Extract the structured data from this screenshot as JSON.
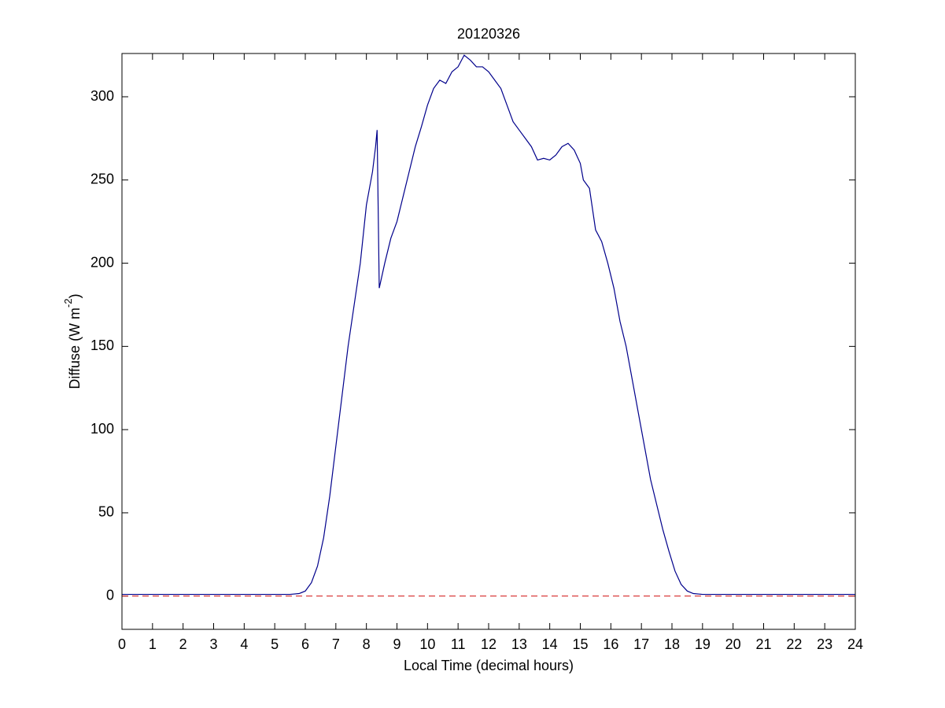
{
  "chart_data": {
    "type": "line",
    "title": "20120326",
    "xlabel": "Local Time (decimal hours)",
    "ylabel": [
      "Diffuse (W m",
      "-2",
      ")"
    ],
    "x": [
      0,
      1,
      2,
      3,
      4,
      5,
      5.5,
      5.8,
      6.0,
      6.2,
      6.4,
      6.6,
      6.8,
      7.0,
      7.2,
      7.4,
      7.6,
      7.8,
      8.0,
      8.2,
      8.3,
      8.35,
      8.38,
      8.42,
      8.6,
      8.8,
      9.0,
      9.2,
      9.4,
      9.6,
      9.8,
      10.0,
      10.2,
      10.4,
      10.6,
      10.8,
      11.0,
      11.2,
      11.4,
      11.6,
      11.8,
      12.0,
      12.2,
      12.4,
      12.6,
      12.8,
      13.0,
      13.2,
      13.4,
      13.6,
      13.8,
      14.0,
      14.2,
      14.4,
      14.6,
      14.8,
      15.0,
      15.1,
      15.3,
      15.5,
      15.7,
      15.9,
      16.1,
      16.3,
      16.5,
      16.7,
      16.9,
      17.1,
      17.3,
      17.5,
      17.7,
      17.9,
      18.1,
      18.3,
      18.5,
      18.7,
      19,
      20,
      21,
      22,
      23,
      24
    ],
    "series": [
      {
        "color": "#00008b",
        "values": [
          1,
          1,
          1,
          1,
          1,
          1,
          1,
          1.5,
          3,
          8,
          18,
          35,
          60,
          90,
          120,
          150,
          175,
          200,
          235,
          255,
          270,
          280,
          240,
          185,
          200,
          215,
          225,
          240,
          255,
          270,
          282,
          295,
          305,
          310,
          308,
          315,
          318,
          325,
          322,
          318,
          318,
          315,
          310,
          305,
          295,
          285,
          280,
          275,
          270,
          262,
          263,
          262,
          265,
          270,
          272,
          268,
          260,
          250,
          245,
          220,
          213,
          200,
          185,
          165,
          150,
          130,
          110,
          90,
          70,
          55,
          40,
          27,
          15,
          7,
          3,
          1.5,
          1,
          1,
          1,
          1,
          1,
          1
        ]
      }
    ],
    "reference_lines": [
      {
        "y": 0,
        "color": "#d62728",
        "dashed": true
      }
    ],
    "xlim": [
      0,
      24
    ],
    "xticks": [
      0,
      1,
      2,
      3,
      4,
      5,
      6,
      7,
      8,
      9,
      10,
      11,
      12,
      13,
      14,
      15,
      16,
      17,
      18,
      19,
      20,
      21,
      22,
      23,
      24
    ],
    "ylim": [
      -20,
      326
    ],
    "yticks": [
      0,
      50,
      100,
      150,
      200,
      250,
      300
    ]
  }
}
